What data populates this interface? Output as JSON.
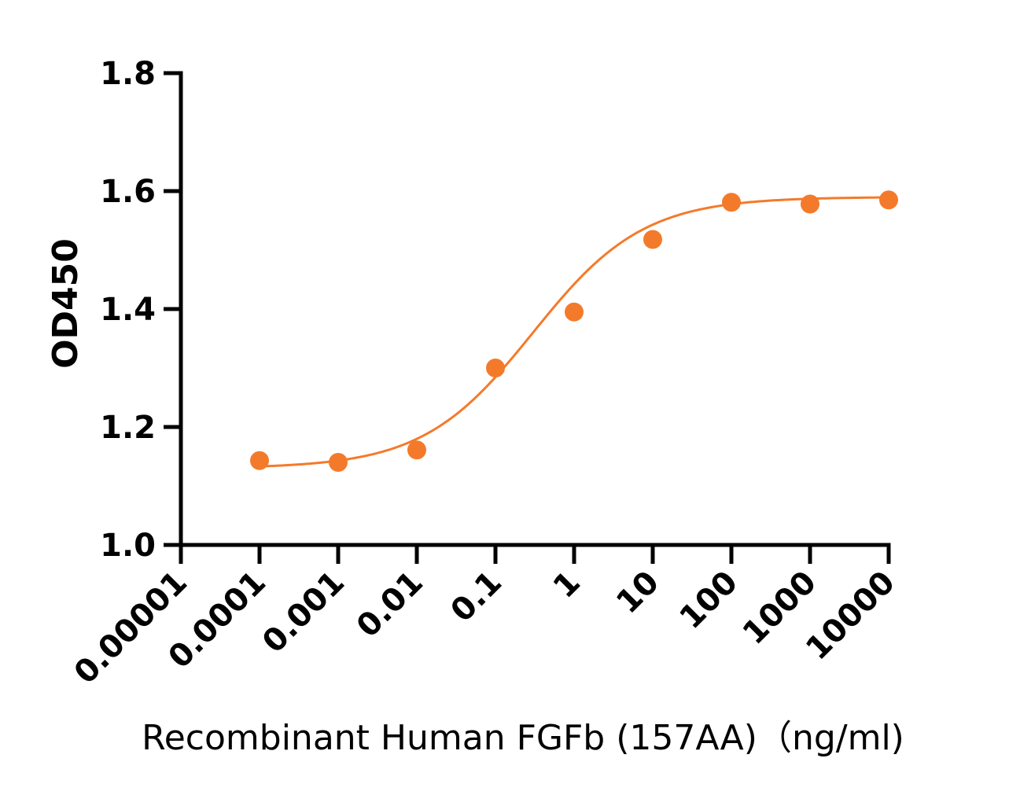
{
  "chart_data": {
    "type": "scatter",
    "title": "",
    "xlabel": "Recombinant Human FGFb (157AA)（ng/ml)",
    "ylabel": "OD450",
    "x_scale": "log10",
    "xlim": [
      1e-05,
      10000
    ],
    "ylim": [
      1.0,
      1.8
    ],
    "x_ticks": [
      1e-05,
      0.0001,
      0.001,
      0.01,
      0.1,
      1,
      10,
      100,
      1000,
      10000
    ],
    "x_tick_labels": [
      "0.00001",
      "0.0001",
      "0.001",
      "0.01",
      "0.1",
      "1",
      "10",
      "100",
      "1000",
      "10000"
    ],
    "y_ticks": [
      1.0,
      1.2,
      1.4,
      1.6,
      1.8
    ],
    "y_tick_labels": [
      "1.0",
      "1.2",
      "1.4",
      "1.6",
      "1.8"
    ],
    "grid": false,
    "legend": "none",
    "series": [
      {
        "x": [
          0.0001,
          0.001,
          0.01,
          0.1,
          1,
          10,
          100,
          1000,
          10000
        ],
        "y": [
          1.143,
          1.14,
          1.161,
          1.3,
          1.395,
          1.518,
          1.581,
          1.578,
          1.585
        ],
        "color": "#F47A2B",
        "fit": {
          "type": "4PL",
          "bottom": 1.13,
          "top": 1.59,
          "ec50": 0.3,
          "hill": 0.62,
          "x_range": [
            0.0001,
            10000
          ]
        }
      }
    ]
  }
}
